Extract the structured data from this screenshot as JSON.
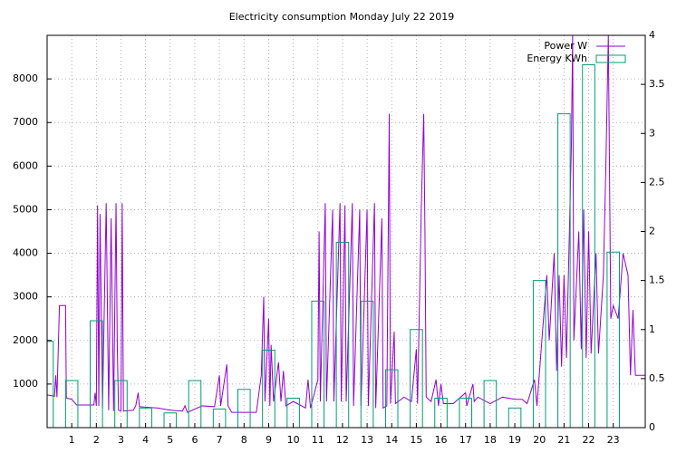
{
  "chart_data": {
    "type": "line",
    "title": "Electricity consumption Monday July 22 2019",
    "xlim": [
      0,
      24.3
    ],
    "xticks": [
      1,
      2,
      3,
      4,
      5,
      6,
      7,
      8,
      9,
      10,
      11,
      12,
      13,
      14,
      15,
      16,
      17,
      18,
      19,
      20,
      21,
      22,
      23
    ],
    "ylim": [
      0,
      9000
    ],
    "yticks": [
      1000,
      2000,
      3000,
      4000,
      5000,
      6000,
      7000,
      8000
    ],
    "y2lim": [
      0,
      4
    ],
    "y2ticks": [
      0,
      0.5,
      1,
      1.5,
      2,
      2.5,
      3,
      3.5,
      4
    ],
    "grid": true,
    "legend": "top-right",
    "series": [
      {
        "name": "Power W",
        "color": "#9400d3",
        "x": [
          0,
          0.3,
          0.35,
          0.4,
          0.5,
          0.75,
          0.78,
          1.0,
          1.2,
          1.9,
          1.95,
          2.0,
          2.05,
          2.1,
          2.15,
          2.25,
          2.4,
          2.5,
          2.6,
          2.7,
          2.8,
          2.85,
          2.9,
          3.0,
          3.05,
          3.1,
          3.5,
          3.6,
          3.7,
          3.75,
          4.5,
          5.0,
          5.5,
          5.6,
          5.7,
          6.3,
          6.8,
          7.0,
          7.05,
          7.3,
          7.35,
          7.5,
          8.5,
          8.7,
          8.8,
          8.85,
          9.0,
          9.05,
          9.1,
          9.2,
          9.4,
          9.5,
          9.6,
          9.7,
          10.0,
          10.5,
          10.6,
          10.7,
          11.0,
          11.05,
          11.1,
          11.3,
          11.35,
          11.6,
          11.65,
          11.9,
          11.95,
          12.1,
          12.15,
          12.4,
          12.45,
          12.7,
          12.75,
          13.0,
          13.05,
          13.3,
          13.35,
          13.6,
          13.65,
          13.8,
          13.9,
          13.95,
          14.1,
          14.15,
          14.5,
          14.8,
          15.0,
          15.05,
          15.2,
          15.3,
          15.35,
          15.4,
          15.6,
          15.8,
          15.9,
          16.0,
          16.1,
          16.5,
          17.0,
          17.05,
          17.3,
          17.35,
          17.5,
          18.0,
          18.5,
          19.0,
          19.3,
          19.5,
          19.8,
          19.9,
          20.3,
          20.4,
          20.6,
          20.7,
          20.8,
          20.9,
          21.0,
          21.1,
          21.3,
          21.35,
          21.4,
          21.6,
          21.7,
          21.8,
          21.9,
          22.0,
          22.1,
          22.3,
          22.4,
          22.6,
          22.7,
          22.8,
          22.9,
          23.0,
          23.2,
          23.4,
          23.6,
          23.7,
          23.8,
          23.9,
          24.0,
          24.3
        ],
        "values": [
          750,
          720,
          1200,
          700,
          2800,
          2800,
          680,
          650,
          520,
          520,
          800,
          500,
          5100,
          500,
          4900,
          450,
          5150,
          400,
          4800,
          380,
          5150,
          1900,
          400,
          380,
          5150,
          380,
          400,
          500,
          800,
          480,
          450,
          400,
          380,
          500,
          350,
          500,
          480,
          1200,
          500,
          1450,
          500,
          350,
          350,
          1200,
          3000,
          600,
          2500,
          500,
          1900,
          600,
          1500,
          600,
          1300,
          500,
          600,
          450,
          1100,
          450,
          1100,
          4500,
          600,
          5150,
          600,
          5000,
          600,
          5150,
          600,
          5100,
          600,
          5150,
          500,
          5000,
          500,
          5000,
          500,
          5150,
          450,
          4800,
          450,
          500,
          7200,
          550,
          2200,
          550,
          700,
          600,
          1800,
          550,
          5000,
          7200,
          4500,
          700,
          600,
          1100,
          500,
          1000,
          550,
          550,
          800,
          500,
          1000,
          600,
          700,
          550,
          700,
          650,
          650,
          550,
          1100,
          500,
          3500,
          2000,
          4000,
          1300,
          3500,
          1400,
          3500,
          1600,
          6500,
          9000,
          2000,
          4500,
          1800,
          5000,
          1600,
          4500,
          1700,
          4000,
          1700,
          3500,
          6000,
          9000,
          2500,
          2800,
          2500,
          4000,
          3500,
          1200,
          2700,
          1200,
          1200,
          1200
        ]
      },
      {
        "name": "Energy KWh",
        "color": "#009e73",
        "type": "bar",
        "axis": "y2",
        "x": [
          0,
          1,
          2,
          3,
          4,
          5,
          6,
          7,
          8,
          9,
          10,
          11,
          12,
          13,
          14,
          15,
          16,
          17,
          18,
          19,
          20,
          21,
          22,
          23
        ],
        "values": [
          0.88,
          0.48,
          1.09,
          0.48,
          0.2,
          0.15,
          0.48,
          0.19,
          0.39,
          0.79,
          0.3,
          1.29,
          1.89,
          1.29,
          0.59,
          1.0,
          0.3,
          0.3,
          0.48,
          0.2,
          1.5,
          3.2,
          3.7,
          1.79
        ]
      }
    ]
  }
}
